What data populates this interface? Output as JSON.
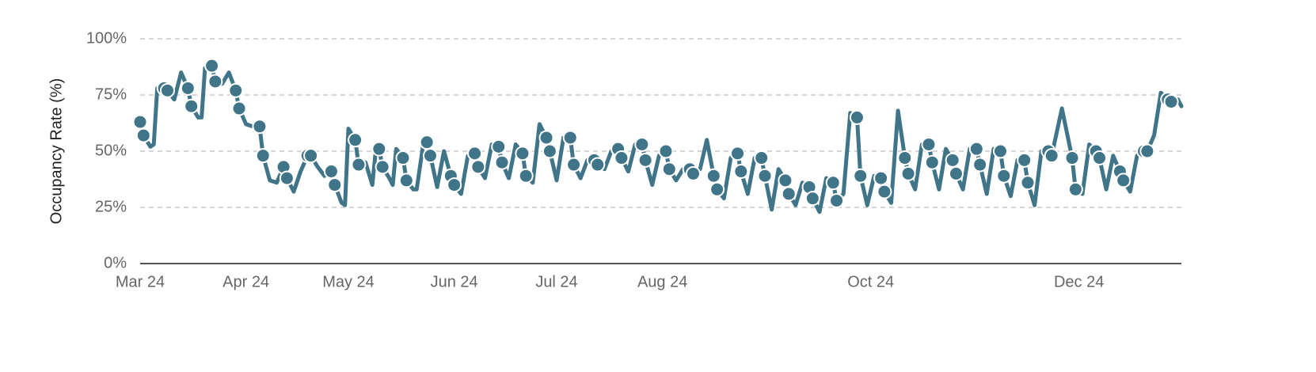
{
  "chart_data": {
    "type": "line",
    "y_label": "Occupancy Rate (%)",
    "color": "#3f7489",
    "grid": true,
    "xlim": [
      "2024-03-01",
      "2024-12-31"
    ],
    "xticks": [
      {
        "value": "2024-03-01",
        "label": "Mar 24"
      },
      {
        "value": "2024-04-01",
        "label": "Apr 24"
      },
      {
        "value": "2024-05-01",
        "label": "May 24"
      },
      {
        "value": "2024-06-01",
        "label": "Jun 24"
      },
      {
        "value": "2024-07-01",
        "label": "Jul 24"
      },
      {
        "value": "2024-08-01",
        "label": "Aug 24"
      },
      {
        "value": "2024-10-01",
        "label": "Oct 24"
      },
      {
        "value": "2024-12-01",
        "label": "Dec 24"
      }
    ],
    "ylim": [
      0,
      100
    ],
    "yticks": [
      {
        "value": 0,
        "label": "0%"
      },
      {
        "value": 25,
        "label": "25%"
      },
      {
        "value": 50,
        "label": "50%"
      },
      {
        "value": 75,
        "label": "75%"
      },
      {
        "value": 100,
        "label": "100%"
      }
    ],
    "x": [
      "2024-03-01",
      "2024-03-02",
      "2024-03-04",
      "2024-03-05",
      "2024-03-06",
      "2024-03-08",
      "2024-03-09",
      "2024-03-11",
      "2024-03-13",
      "2024-03-15",
      "2024-03-16",
      "2024-03-18",
      "2024-03-19",
      "2024-03-20",
      "2024-03-22",
      "2024-03-23",
      "2024-03-25",
      "2024-03-27",
      "2024-03-29",
      "2024-03-30",
      "2024-04-01",
      "2024-04-03",
      "2024-04-05",
      "2024-04-06",
      "2024-04-08",
      "2024-04-10",
      "2024-04-12",
      "2024-04-13",
      "2024-04-15",
      "2024-04-17",
      "2024-04-19",
      "2024-04-20",
      "2024-04-22",
      "2024-04-24",
      "2024-04-26",
      "2024-04-27",
      "2024-04-29",
      "2024-04-30",
      "2024-05-01",
      "2024-05-03",
      "2024-05-04",
      "2024-05-06",
      "2024-05-08",
      "2024-05-09",
      "2024-05-10",
      "2024-05-11",
      "2024-05-13",
      "2024-05-14",
      "2024-05-15",
      "2024-05-17",
      "2024-05-18",
      "2024-05-20",
      "2024-05-21",
      "2024-05-23",
      "2024-05-24",
      "2024-05-25",
      "2024-05-27",
      "2024-05-29",
      "2024-05-31",
      "2024-06-01",
      "2024-06-03",
      "2024-06-05",
      "2024-06-07",
      "2024-06-08",
      "2024-06-10",
      "2024-06-12",
      "2024-06-14",
      "2024-06-15",
      "2024-06-17",
      "2024-06-19",
      "2024-06-21",
      "2024-06-22",
      "2024-06-24",
      "2024-06-26",
      "2024-06-28",
      "2024-06-29",
      "2024-07-01",
      "2024-07-03",
      "2024-07-05",
      "2024-07-06",
      "2024-07-08",
      "2024-07-10",
      "2024-07-12",
      "2024-07-13",
      "2024-07-15",
      "2024-07-17",
      "2024-07-19",
      "2024-07-20",
      "2024-07-22",
      "2024-07-24",
      "2024-07-26",
      "2024-07-27",
      "2024-07-29",
      "2024-07-31",
      "2024-08-02",
      "2024-08-03",
      "2024-08-05",
      "2024-08-07",
      "2024-08-09",
      "2024-08-10",
      "2024-08-12",
      "2024-08-14",
      "2024-08-16",
      "2024-08-17",
      "2024-08-19",
      "2024-08-21",
      "2024-08-23",
      "2024-08-24",
      "2024-08-26",
      "2024-08-28",
      "2024-08-30",
      "2024-08-31",
      "2024-09-02",
      "2024-09-04",
      "2024-09-06",
      "2024-09-07",
      "2024-09-09",
      "2024-09-11",
      "2024-09-13",
      "2024-09-14",
      "2024-09-16",
      "2024-09-18",
      "2024-09-20",
      "2024-09-21",
      "2024-09-23",
      "2024-09-25",
      "2024-09-27",
      "2024-09-28",
      "2024-09-30",
      "2024-10-02",
      "2024-10-04",
      "2024-10-05",
      "2024-10-07",
      "2024-10-09",
      "2024-10-11",
      "2024-10-12",
      "2024-10-14",
      "2024-10-16",
      "2024-10-18",
      "2024-10-19",
      "2024-10-21",
      "2024-10-23",
      "2024-10-25",
      "2024-10-26",
      "2024-10-28",
      "2024-10-30",
      "2024-11-01",
      "2024-11-02",
      "2024-11-04",
      "2024-11-06",
      "2024-11-08",
      "2024-11-09",
      "2024-11-11",
      "2024-11-13",
      "2024-11-15",
      "2024-11-16",
      "2024-11-18",
      "2024-11-20",
      "2024-11-22",
      "2024-11-23",
      "2024-11-26",
      "2024-11-29",
      "2024-11-30",
      "2024-12-02",
      "2024-12-04",
      "2024-12-06",
      "2024-12-07",
      "2024-12-09",
      "2024-12-11",
      "2024-12-13",
      "2024-12-14",
      "2024-12-16",
      "2024-12-18",
      "2024-12-20",
      "2024-12-21",
      "2024-12-23",
      "2024-12-25",
      "2024-12-27",
      "2024-12-28",
      "2024-12-30",
      "2024-12-31"
    ],
    "values": [
      63,
      57,
      52,
      53,
      78,
      78,
      77,
      73,
      85,
      78,
      70,
      65,
      65,
      87,
      88,
      81,
      80,
      85,
      77,
      69,
      62,
      61,
      61,
      48,
      37,
      36,
      43,
      38,
      32,
      41,
      48,
      48,
      43,
      39,
      41,
      35,
      27,
      26,
      60,
      55,
      44,
      45,
      35,
      50,
      51,
      43,
      38,
      35,
      51,
      47,
      37,
      33,
      33,
      54,
      54,
      48,
      34,
      50,
      39,
      35,
      31,
      48,
      49,
      43,
      38,
      53,
      52,
      45,
      38,
      53,
      49,
      39,
      36,
      62,
      56,
      50,
      37,
      56,
      56,
      44,
      38,
      46,
      46,
      44,
      42,
      50,
      51,
      47,
      41,
      53,
      53,
      46,
      35,
      48,
      50,
      42,
      37,
      42,
      42,
      40,
      42,
      55,
      39,
      33,
      29,
      47,
      49,
      41,
      31,
      47,
      47,
      39,
      24,
      42,
      37,
      31,
      26,
      36,
      34,
      29,
      23,
      38,
      36,
      28,
      31,
      67,
      65,
      39,
      26,
      39,
      38,
      32,
      27,
      68,
      47,
      40,
      33,
      53,
      53,
      45,
      33,
      51,
      46,
      40,
      33,
      51,
      51,
      44,
      31,
      51,
      50,
      39,
      30,
      46,
      46,
      36,
      26,
      50,
      50,
      48,
      69,
      47,
      33,
      31,
      53,
      50,
      47,
      33,
      48,
      41,
      37,
      32,
      48,
      50,
      50,
      57,
      76,
      73,
      72,
      73,
      70
    ],
    "points": {
      "x": [
        "2024-03-01",
        "2024-03-02",
        "2024-03-08",
        "2024-03-09",
        "2024-03-15",
        "2024-03-16",
        "2024-03-22",
        "2024-03-23",
        "2024-03-29",
        "2024-03-30",
        "2024-04-05",
        "2024-04-06",
        "2024-04-12",
        "2024-04-13",
        "2024-04-19",
        "2024-04-20",
        "2024-04-26",
        "2024-04-27",
        "2024-05-03",
        "2024-05-04",
        "2024-05-10",
        "2024-05-11",
        "2024-05-17",
        "2024-05-18",
        "2024-05-24",
        "2024-05-25",
        "2024-05-31",
        "2024-06-01",
        "2024-06-07",
        "2024-06-08",
        "2024-06-14",
        "2024-06-15",
        "2024-06-21",
        "2024-06-22",
        "2024-06-28",
        "2024-06-29",
        "2024-07-05",
        "2024-07-06",
        "2024-07-12",
        "2024-07-13",
        "2024-07-19",
        "2024-07-20",
        "2024-07-26",
        "2024-07-27",
        "2024-08-02",
        "2024-08-03",
        "2024-08-09",
        "2024-08-10",
        "2024-08-16",
        "2024-08-17",
        "2024-08-23",
        "2024-08-24",
        "2024-08-30",
        "2024-08-31",
        "2024-09-06",
        "2024-09-07",
        "2024-09-13",
        "2024-09-14",
        "2024-09-20",
        "2024-09-21",
        "2024-09-27",
        "2024-09-28",
        "2024-10-04",
        "2024-10-05",
        "2024-10-11",
        "2024-10-12",
        "2024-10-18",
        "2024-10-19",
        "2024-10-25",
        "2024-10-26",
        "2024-11-01",
        "2024-11-02",
        "2024-11-08",
        "2024-11-09",
        "2024-11-15",
        "2024-11-16",
        "2024-11-22",
        "2024-11-23",
        "2024-11-29",
        "2024-11-30",
        "2024-12-06",
        "2024-12-07",
        "2024-12-13",
        "2024-12-14",
        "2024-12-20",
        "2024-12-21",
        "2024-12-27",
        "2024-12-28"
      ],
      "values": [
        63,
        57,
        78,
        77,
        78,
        70,
        88,
        81,
        77,
        69,
        61,
        48,
        43,
        38,
        48,
        48,
        41,
        35,
        55,
        44,
        51,
        43,
        47,
        37,
        54,
        48,
        39,
        35,
        49,
        43,
        52,
        45,
        49,
        39,
        56,
        50,
        56,
        44,
        46,
        44,
        51,
        47,
        53,
        46,
        50,
        42,
        42,
        40,
        39,
        33,
        49,
        41,
        47,
        39,
        37,
        31,
        34,
        29,
        36,
        28,
        65,
        39,
        38,
        32,
        47,
        40,
        53,
        45,
        46,
        40,
        51,
        44,
        50,
        39,
        46,
        36,
        50,
        48,
        47,
        33,
        50,
        47,
        41,
        37,
        50,
        50,
        73,
        72
      ]
    }
  }
}
